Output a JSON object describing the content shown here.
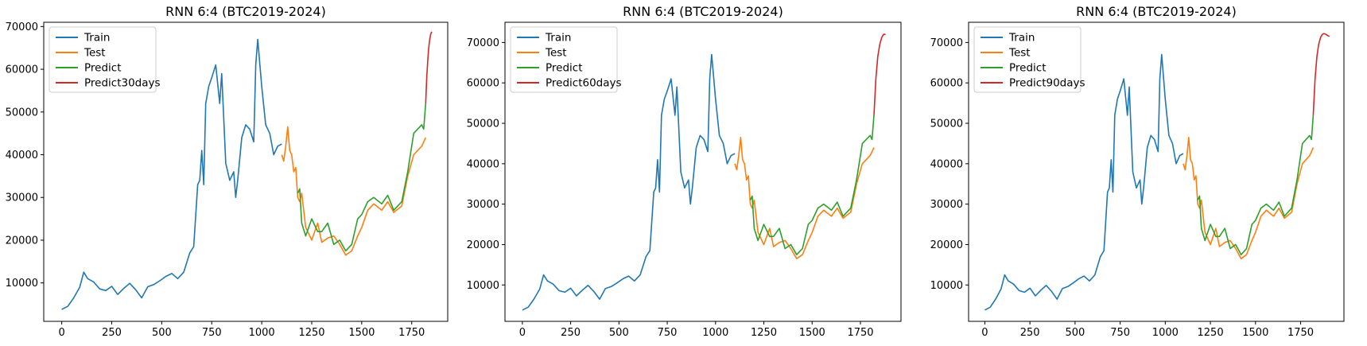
{
  "colors": {
    "Train": "#1f77b4",
    "Test": "#ff7f0e",
    "Predict": "#2ca02c",
    "Forecast": "#d62728"
  },
  "chart_data": [
    {
      "type": "line",
      "title": "RNN 6:4 (BTC2019-2024)",
      "xlabel": "",
      "ylabel": "",
      "xlim": [
        -90,
        1930
      ],
      "ylim": [
        1000,
        71000
      ],
      "x_ticks": [
        0,
        250,
        500,
        750,
        1000,
        1250,
        1500,
        1750
      ],
      "y_ticks": [
        10000,
        20000,
        30000,
        40000,
        50000,
        60000,
        70000
      ],
      "legend_position": "top-left",
      "legend": [
        "Train",
        "Test",
        "Predict",
        "Predict30days"
      ],
      "series": [
        {
          "name": "Train",
          "x": [
            0,
            30,
            60,
            90,
            110,
            130,
            160,
            190,
            220,
            250,
            280,
            310,
            340,
            370,
            400,
            430,
            460,
            490,
            520,
            550,
            580,
            610,
            640,
            660,
            680,
            690,
            700,
            710,
            720,
            735,
            750,
            770,
            790,
            800,
            820,
            840,
            860,
            870,
            880,
            900,
            920,
            940,
            960,
            970,
            980,
            1000,
            1020,
            1040,
            1060,
            1080,
            1100
          ],
          "y": [
            3800,
            4500,
            6500,
            9000,
            12500,
            11000,
            10200,
            8600,
            8200,
            9200,
            7300,
            8700,
            9900,
            8400,
            6500,
            9100,
            9600,
            10500,
            11500,
            12200,
            11000,
            12500,
            17000,
            18500,
            33000,
            34000,
            41000,
            33000,
            52000,
            56000,
            58000,
            61000,
            52000,
            59000,
            38000,
            34000,
            36000,
            30000,
            34000,
            44000,
            47000,
            46000,
            43000,
            61000,
            67000,
            56000,
            47000,
            45000,
            40000,
            42000,
            42500
          ]
        },
        {
          "name": "Test",
          "x": [
            1100,
            1110,
            1120,
            1130,
            1140,
            1150,
            1160,
            1170,
            1180,
            1190,
            1200,
            1220,
            1250,
            1280,
            1300,
            1330,
            1360,
            1390,
            1420,
            1450,
            1480,
            1500,
            1530,
            1560,
            1600,
            1630,
            1660,
            1700,
            1730,
            1760,
            1800,
            1810,
            1820
          ],
          "y": [
            40000,
            38500,
            42000,
            46500,
            41000,
            40000,
            36000,
            37000,
            30000,
            29000,
            31000,
            23000,
            20000,
            24000,
            19500,
            20500,
            21000,
            19000,
            16500,
            17500,
            21000,
            23000,
            27000,
            28500,
            27000,
            29000,
            26500,
            28000,
            35000,
            40000,
            42000,
            43000,
            44000
          ]
        },
        {
          "name": "Predict",
          "x": [
            1180,
            1190,
            1200,
            1220,
            1250,
            1280,
            1300,
            1330,
            1360,
            1390,
            1420,
            1450,
            1480,
            1500,
            1530,
            1560,
            1600,
            1630,
            1660,
            1700,
            1730,
            1760,
            1800,
            1810,
            1820
          ],
          "y": [
            31000,
            32000,
            24000,
            21000,
            25000,
            22000,
            22000,
            24000,
            19000,
            20000,
            17500,
            19000,
            25000,
            26000,
            29000,
            30000,
            28500,
            30500,
            27000,
            29000,
            36000,
            45000,
            47000,
            46000,
            52000
          ]
        },
        {
          "name": "Predict30days",
          "x": [
            1820,
            1825,
            1830,
            1835,
            1840,
            1845,
            1850
          ],
          "y": [
            52000,
            58000,
            62000,
            65000,
            67000,
            68200,
            68800
          ]
        }
      ]
    },
    {
      "type": "line",
      "title": "RNN 6:4 (BTC2019-2024)",
      "xlabel": "",
      "ylabel": "",
      "xlim": [
        -90,
        1960
      ],
      "ylim": [
        1000,
        75000
      ],
      "x_ticks": [
        0,
        250,
        500,
        750,
        1000,
        1250,
        1500,
        1750
      ],
      "y_ticks": [
        10000,
        20000,
        30000,
        40000,
        50000,
        60000,
        70000
      ],
      "legend_position": "top-left",
      "legend": [
        "Train",
        "Test",
        "Predict",
        "Predict60days"
      ],
      "series": [
        {
          "name": "Train",
          "x": [
            0,
            30,
            60,
            90,
            110,
            130,
            160,
            190,
            220,
            250,
            280,
            310,
            340,
            370,
            400,
            430,
            460,
            490,
            520,
            550,
            580,
            610,
            640,
            660,
            680,
            690,
            700,
            710,
            720,
            735,
            750,
            770,
            790,
            800,
            820,
            840,
            860,
            870,
            880,
            900,
            920,
            940,
            960,
            970,
            980,
            1000,
            1020,
            1040,
            1060,
            1080,
            1100
          ],
          "y": [
            3800,
            4500,
            6500,
            9000,
            12500,
            11000,
            10200,
            8600,
            8200,
            9200,
            7300,
            8700,
            9900,
            8400,
            6500,
            9100,
            9600,
            10500,
            11500,
            12200,
            11000,
            12500,
            17000,
            18500,
            33000,
            34000,
            41000,
            33000,
            52000,
            56000,
            58000,
            61000,
            52000,
            59000,
            38000,
            34000,
            36000,
            30000,
            34000,
            44000,
            47000,
            46000,
            43000,
            61000,
            67000,
            56000,
            47000,
            45000,
            40000,
            42000,
            42500
          ]
        },
        {
          "name": "Test",
          "x": [
            1100,
            1110,
            1120,
            1130,
            1140,
            1150,
            1160,
            1170,
            1180,
            1190,
            1200,
            1220,
            1250,
            1280,
            1300,
            1330,
            1360,
            1390,
            1420,
            1450,
            1480,
            1500,
            1530,
            1560,
            1600,
            1630,
            1660,
            1700,
            1730,
            1760,
            1800,
            1810,
            1820
          ],
          "y": [
            40000,
            38500,
            42000,
            46500,
            41000,
            40000,
            36000,
            37000,
            30000,
            29000,
            31000,
            23000,
            20000,
            24000,
            19500,
            20500,
            21000,
            19000,
            16500,
            17500,
            21000,
            23000,
            27000,
            28500,
            27000,
            29000,
            26500,
            28000,
            35000,
            40000,
            42000,
            43000,
            44000
          ]
        },
        {
          "name": "Predict",
          "x": [
            1180,
            1190,
            1200,
            1220,
            1250,
            1280,
            1300,
            1330,
            1360,
            1390,
            1420,
            1450,
            1480,
            1500,
            1530,
            1560,
            1600,
            1630,
            1660,
            1700,
            1730,
            1760,
            1800,
            1810,
            1820
          ],
          "y": [
            31000,
            32000,
            24000,
            21000,
            25000,
            22000,
            22000,
            24000,
            19000,
            20000,
            17500,
            19000,
            25000,
            26000,
            29000,
            30000,
            28500,
            30500,
            27000,
            29000,
            36000,
            45000,
            47000,
            46000,
            52000
          ]
        },
        {
          "name": "Predict60days",
          "x": [
            1820,
            1830,
            1840,
            1850,
            1860,
            1870,
            1880
          ],
          "y": [
            52000,
            61000,
            66500,
            69500,
            71200,
            72000,
            72000
          ]
        }
      ]
    },
    {
      "type": "line",
      "title": "RNN 6:4 (BTC2019-2024)",
      "xlabel": "",
      "ylabel": "",
      "xlim": [
        -90,
        1990
      ],
      "ylim": [
        1000,
        75000
      ],
      "x_ticks": [
        0,
        250,
        500,
        750,
        1000,
        1250,
        1500,
        1750
      ],
      "y_ticks": [
        10000,
        20000,
        30000,
        40000,
        50000,
        60000,
        70000
      ],
      "legend_position": "top-left",
      "legend": [
        "Train",
        "Test",
        "Predict",
        "Predict90days"
      ],
      "series": [
        {
          "name": "Train",
          "x": [
            0,
            30,
            60,
            90,
            110,
            130,
            160,
            190,
            220,
            250,
            280,
            310,
            340,
            370,
            400,
            430,
            460,
            490,
            520,
            550,
            580,
            610,
            640,
            660,
            680,
            690,
            700,
            710,
            720,
            735,
            750,
            770,
            790,
            800,
            820,
            840,
            860,
            870,
            880,
            900,
            920,
            940,
            960,
            970,
            980,
            1000,
            1020,
            1040,
            1060,
            1080,
            1100
          ],
          "y": [
            3800,
            4500,
            6500,
            9000,
            12500,
            11000,
            10200,
            8600,
            8200,
            9200,
            7300,
            8700,
            9900,
            8400,
            6500,
            9100,
            9600,
            10500,
            11500,
            12200,
            11000,
            12500,
            17000,
            18500,
            33000,
            34000,
            41000,
            33000,
            52000,
            56000,
            58000,
            61000,
            52000,
            59000,
            38000,
            34000,
            36000,
            30000,
            34000,
            44000,
            47000,
            46000,
            43000,
            61000,
            67000,
            56000,
            47000,
            45000,
            40000,
            42000,
            42500
          ]
        },
        {
          "name": "Test",
          "x": [
            1100,
            1110,
            1120,
            1130,
            1140,
            1150,
            1160,
            1170,
            1180,
            1190,
            1200,
            1220,
            1250,
            1280,
            1300,
            1330,
            1360,
            1390,
            1420,
            1450,
            1480,
            1500,
            1530,
            1560,
            1600,
            1630,
            1660,
            1700,
            1730,
            1760,
            1800,
            1810,
            1820
          ],
          "y": [
            40000,
            38500,
            42000,
            46500,
            41000,
            40000,
            36000,
            37000,
            30000,
            29000,
            31000,
            23000,
            20000,
            24000,
            19500,
            20500,
            21000,
            19000,
            16500,
            17500,
            21000,
            23000,
            27000,
            28500,
            27000,
            29000,
            26500,
            28000,
            35000,
            40000,
            42000,
            43000,
            44000
          ]
        },
        {
          "name": "Predict",
          "x": [
            1180,
            1190,
            1200,
            1220,
            1250,
            1280,
            1300,
            1330,
            1360,
            1390,
            1420,
            1450,
            1480,
            1500,
            1530,
            1560,
            1600,
            1630,
            1660,
            1700,
            1730,
            1760,
            1800,
            1810,
            1820
          ],
          "y": [
            31000,
            32000,
            24000,
            21000,
            25000,
            22000,
            22000,
            24000,
            19000,
            20000,
            17500,
            19000,
            25000,
            26000,
            29000,
            30000,
            28500,
            30500,
            27000,
            29000,
            36000,
            45000,
            47000,
            46000,
            52000
          ]
        },
        {
          "name": "Predict90days",
          "x": [
            1820,
            1830,
            1840,
            1850,
            1860,
            1870,
            1880,
            1890,
            1900,
            1910
          ],
          "y": [
            52000,
            61000,
            66500,
            69500,
            71200,
            72000,
            72200,
            72000,
            71700,
            71500
          ]
        }
      ]
    }
  ]
}
